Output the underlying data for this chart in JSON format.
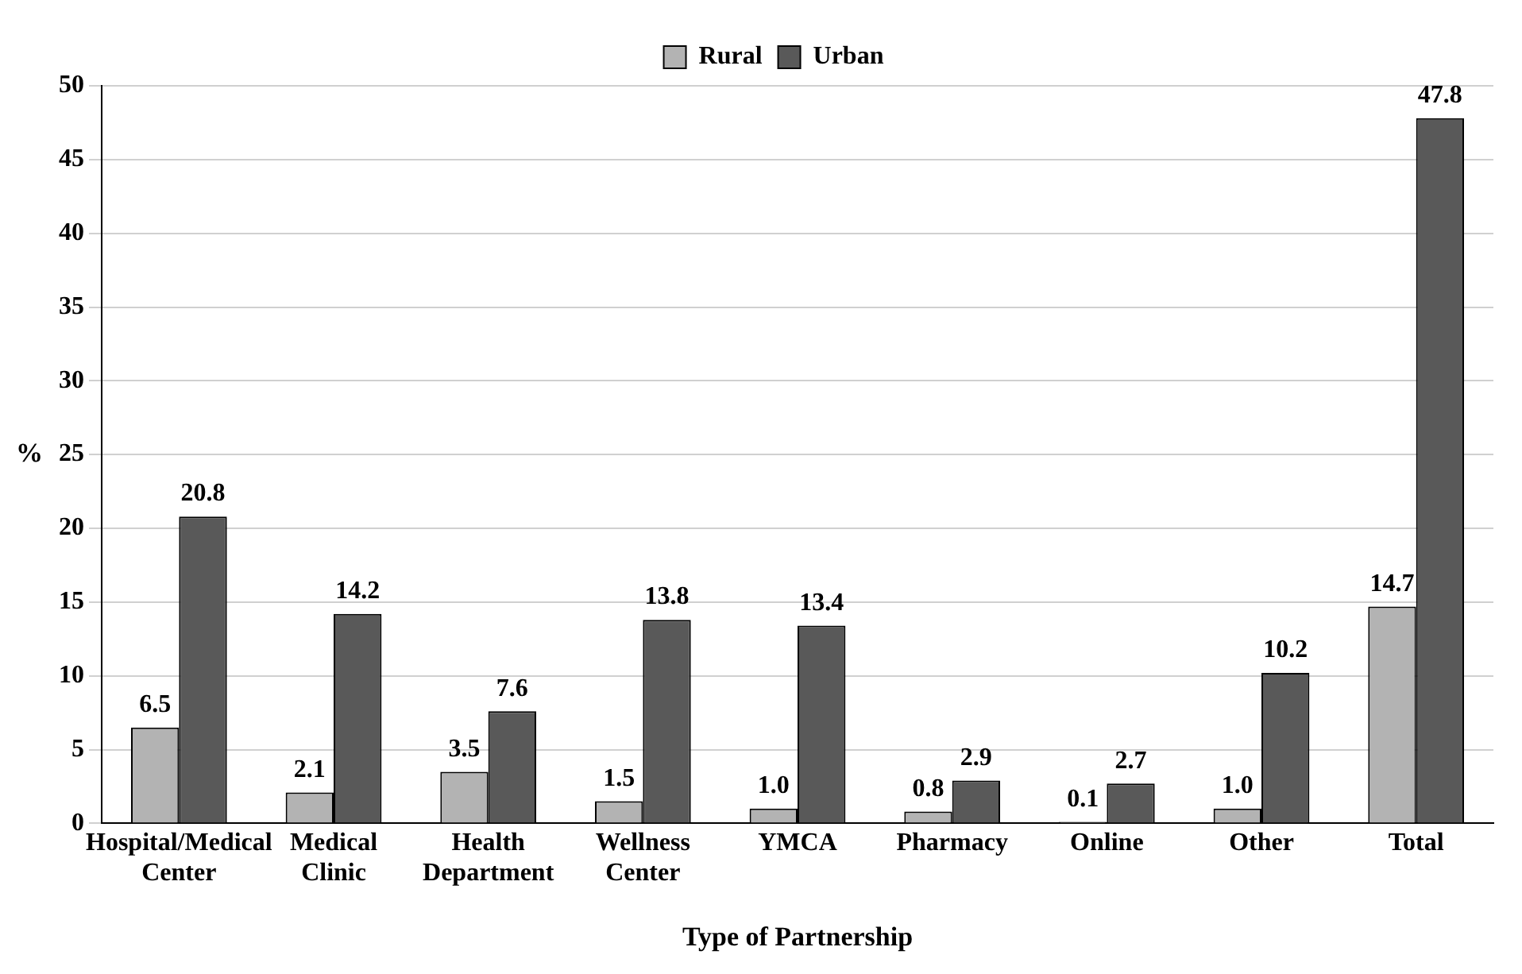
{
  "chart_data": {
    "type": "bar",
    "xlabel": "Type of Partnership",
    "ylabel": "%",
    "categories": [
      "Hospital/Medical Center",
      "Medical Clinic",
      "Health Department",
      "Wellness Center",
      "YMCA",
      "Pharmacy",
      "Online",
      "Other",
      "Total"
    ],
    "series": [
      {
        "name": "Rural",
        "color": "#b3b3b3",
        "values": [
          6.5,
          2.1,
          3.5,
          1.5,
          1.0,
          0.8,
          0.1,
          1.0,
          14.7
        ],
        "value_labels": [
          "6.5",
          "2.1",
          "3.5",
          "1.5",
          "1.0",
          "0.8",
          "0.1",
          "1.0",
          "14.7"
        ]
      },
      {
        "name": "Urban",
        "color": "#595959",
        "values": [
          20.8,
          14.2,
          7.6,
          13.8,
          13.4,
          2.9,
          2.7,
          10.2,
          47.8
        ],
        "value_labels": [
          "20.8",
          "14.2",
          "7.6",
          "13.8",
          "13.4",
          "2.9",
          "2.7",
          "10.2",
          "47.8"
        ]
      }
    ],
    "ylim": [
      0,
      50
    ],
    "yticks": [
      0,
      5,
      10,
      15,
      20,
      25,
      30,
      35,
      40,
      45,
      50
    ],
    "grid": "y",
    "legend": "top"
  }
}
